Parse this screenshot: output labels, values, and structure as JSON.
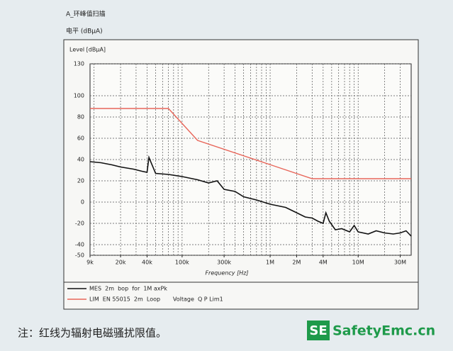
{
  "chart_data": {
    "type": "line",
    "heading": "A_环峰值扫描",
    "unit_label": "电平 (dBµA)",
    "y_label": "Level [dBµA]",
    "x_label": "Frequency [Hz]",
    "log_x": true,
    "grid": true,
    "xlim": [
      9000,
      40000000
    ],
    "xticks": [
      {
        "value": 9000,
        "label": "9k"
      },
      {
        "value": 20000,
        "label": "20k"
      },
      {
        "value": 40000,
        "label": "40k"
      },
      {
        "value": 100000,
        "label": "100k"
      },
      {
        "value": 300000,
        "label": "300k"
      },
      {
        "value": 1000000,
        "label": "1M"
      },
      {
        "value": 2000000,
        "label": "2M"
      },
      {
        "value": 4000000,
        "label": "4M"
      },
      {
        "value": 10000000,
        "label": "10M"
      },
      {
        "value": 30000000,
        "label": "30M"
      }
    ],
    "ylim": [
      -50,
      130
    ],
    "yticks": [
      -50,
      -40,
      -20,
      0,
      20,
      40,
      60,
      80,
      100,
      130
    ],
    "series": [
      {
        "name": "MES  2m  bop  for  1M axPk",
        "color": "#111111",
        "x": [
          9000,
          12000,
          16000,
          20000,
          28000,
          35000,
          40000,
          42000,
          50000,
          70000,
          100000,
          150000,
          200000,
          250000,
          300000,
          400000,
          500000,
          700000,
          1000000,
          1500000,
          2000000,
          2500000,
          3000000,
          3500000,
          4000000,
          4300000,
          4700000,
          5500000,
          6500000,
          8000000,
          9000000,
          10000000,
          13000000,
          16000000,
          20000000,
          25000000,
          30000000,
          35000000,
          40000000
        ],
        "values": [
          38,
          37,
          35,
          33,
          31,
          29,
          28,
          42,
          27,
          26,
          24,
          21,
          18,
          20,
          12,
          10,
          5,
          2,
          -2,
          -5,
          -10,
          -14,
          -15,
          -18,
          -20,
          -10,
          -18,
          -26,
          -25,
          -28,
          -22,
          -28,
          -30,
          -27,
          -29,
          -30,
          -29,
          -27,
          -32
        ]
      },
      {
        "name": "LIM  EN 55015  2m  Loop       Voltage  Q P Lim1",
        "color": "#e8665a",
        "x": [
          9000,
          70000,
          150000,
          3000000,
          40000000
        ],
        "values": [
          88,
          88,
          58,
          22,
          22
        ]
      }
    ],
    "caption": "注：红线为辐射电磁骚扰限值。",
    "logo_mark": "SE",
    "logo_text": "SafetyEmc.cn"
  }
}
